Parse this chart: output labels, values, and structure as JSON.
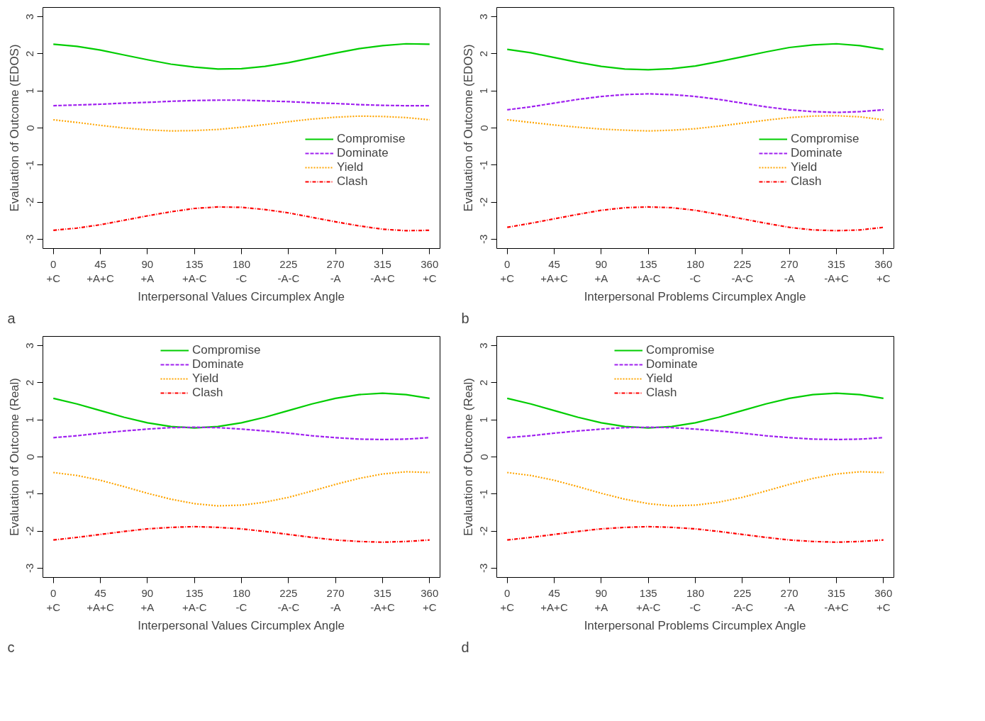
{
  "chart_data": [
    {
      "type": "line",
      "x": [
        0,
        22.5,
        45,
        67.5,
        90,
        112.5,
        135,
        157.5,
        180,
        202.5,
        225,
        247.5,
        270,
        292.5,
        315,
        337.5,
        360
      ],
      "xlabel": "Interpersonal Values Circumplex Angle",
      "ylabel": "Evaluation of Outcome (EDOS)",
      "xlim": [
        -10,
        370
      ],
      "ylim": [
        -3.25,
        3.25
      ],
      "xticks": [
        {
          "value": 0,
          "label": "0\n+C"
        },
        {
          "value": 45,
          "label": "45\n+A+C"
        },
        {
          "value": 90,
          "label": "90\n+A"
        },
        {
          "value": 135,
          "label": "135\n+A-C"
        },
        {
          "value": 180,
          "label": "180\n-C"
        },
        {
          "value": 225,
          "label": "225\n-A-C"
        },
        {
          "value": 270,
          "label": "270\n-A"
        },
        {
          "value": 315,
          "label": "315\n-A+C"
        },
        {
          "value": 360,
          "label": "360\n+C"
        }
      ],
      "yticks": [
        -3,
        -2,
        -1,
        0,
        1,
        2,
        3
      ],
      "grid": false,
      "legend": "right",
      "annotations": [
        "a"
      ],
      "series": [
        {
          "name": "Compromise",
          "color": "#00cd00",
          "line_style": "solid",
          "values": [
            2.26,
            2.2,
            2.1,
            1.97,
            1.84,
            1.72,
            1.64,
            1.59,
            1.6,
            1.66,
            1.76,
            1.89,
            2.02,
            2.14,
            2.22,
            2.27,
            2.26
          ]
        },
        {
          "name": "Dominate",
          "color": "#a020f0",
          "line_style": "dashed",
          "values": [
            0.6,
            0.62,
            0.64,
            0.67,
            0.69,
            0.72,
            0.74,
            0.75,
            0.75,
            0.73,
            0.71,
            0.68,
            0.66,
            0.63,
            0.61,
            0.6,
            0.6
          ]
        },
        {
          "name": "Yield",
          "color": "#ffa500",
          "line_style": "dotted",
          "values": [
            0.22,
            0.15,
            0.07,
            0.0,
            -0.05,
            -0.08,
            -0.07,
            -0.04,
            0.02,
            0.09,
            0.17,
            0.24,
            0.29,
            0.32,
            0.31,
            0.28,
            0.22
          ]
        },
        {
          "name": "Clash",
          "color": "#ff0000",
          "line_style": "dashdot",
          "values": [
            -2.76,
            -2.7,
            -2.61,
            -2.49,
            -2.37,
            -2.26,
            -2.17,
            -2.13,
            -2.14,
            -2.2,
            -2.29,
            -2.41,
            -2.53,
            -2.64,
            -2.73,
            -2.77,
            -2.76
          ]
        }
      ]
    },
    {
      "type": "line",
      "x": [
        0,
        22.5,
        45,
        67.5,
        90,
        112.5,
        135,
        157.5,
        180,
        202.5,
        225,
        247.5,
        270,
        292.5,
        315,
        337.5,
        360
      ],
      "xlabel": "Interpersonal Problems Circumplex Angle",
      "ylabel": "Evaluation of Outcome (EDOS)",
      "xlim": [
        -10,
        370
      ],
      "ylim": [
        -3.25,
        3.25
      ],
      "xticks": [
        {
          "value": 0,
          "label": "0\n+C"
        },
        {
          "value": 45,
          "label": "45\n+A+C"
        },
        {
          "value": 90,
          "label": "90\n+A"
        },
        {
          "value": 135,
          "label": "135\n+A-C"
        },
        {
          "value": 180,
          "label": "180\n-C"
        },
        {
          "value": 225,
          "label": "225\n-A-C"
        },
        {
          "value": 270,
          "label": "270\n-A"
        },
        {
          "value": 315,
          "label": "315\n-A+C"
        },
        {
          "value": 360,
          "label": "360\n+C"
        }
      ],
      "yticks": [
        -3,
        -2,
        -1,
        0,
        1,
        2,
        3
      ],
      "grid": false,
      "legend": "right",
      "annotations": [
        "b"
      ],
      "series": [
        {
          "name": "Compromise",
          "color": "#00cd00",
          "line_style": "solid",
          "values": [
            2.12,
            2.03,
            1.9,
            1.77,
            1.66,
            1.59,
            1.57,
            1.6,
            1.67,
            1.79,
            1.92,
            2.05,
            2.17,
            2.24,
            2.27,
            2.22,
            2.12
          ]
        },
        {
          "name": "Dominate",
          "color": "#a020f0",
          "line_style": "dashed",
          "values": [
            0.49,
            0.57,
            0.67,
            0.77,
            0.85,
            0.9,
            0.92,
            0.9,
            0.85,
            0.77,
            0.67,
            0.57,
            0.49,
            0.44,
            0.42,
            0.44,
            0.49
          ]
        },
        {
          "name": "Yield",
          "color": "#ffa500",
          "line_style": "dotted",
          "values": [
            0.22,
            0.15,
            0.08,
            0.02,
            -0.03,
            -0.06,
            -0.08,
            -0.06,
            -0.02,
            0.05,
            0.13,
            0.21,
            0.28,
            0.32,
            0.33,
            0.3,
            0.22
          ]
        },
        {
          "name": "Clash",
          "color": "#ff0000",
          "line_style": "dashdot",
          "values": [
            -2.68,
            -2.57,
            -2.45,
            -2.33,
            -2.22,
            -2.15,
            -2.13,
            -2.15,
            -2.22,
            -2.33,
            -2.45,
            -2.57,
            -2.68,
            -2.75,
            -2.77,
            -2.75,
            -2.68
          ]
        }
      ]
    },
    {
      "type": "line",
      "x": [
        0,
        22.5,
        45,
        67.5,
        90,
        112.5,
        135,
        157.5,
        180,
        202.5,
        225,
        247.5,
        270,
        292.5,
        315,
        337.5,
        360
      ],
      "xlabel": "Interpersonal Values Circumplex Angle",
      "ylabel": "Evaluation of Outcome (Real)",
      "xlim": [
        -10,
        370
      ],
      "ylim": [
        -3.25,
        3.25
      ],
      "xticks": [
        {
          "value": 0,
          "label": "0\n+C"
        },
        {
          "value": 45,
          "label": "45\n+A+C"
        },
        {
          "value": 90,
          "label": "90\n+A"
        },
        {
          "value": 135,
          "label": "135\n+A-C"
        },
        {
          "value": 180,
          "label": "180\n-C"
        },
        {
          "value": 225,
          "label": "225\n-A-C"
        },
        {
          "value": 270,
          "label": "270\n-A"
        },
        {
          "value": 315,
          "label": "315\n-A+C"
        },
        {
          "value": 360,
          "label": "360\n+C"
        }
      ],
      "yticks": [
        -3,
        -2,
        -1,
        0,
        1,
        2,
        3
      ],
      "grid": false,
      "legend": "top",
      "annotations": [
        "c"
      ],
      "series": [
        {
          "name": "Compromise",
          "color": "#00cd00",
          "line_style": "solid",
          "values": [
            1.58,
            1.43,
            1.25,
            1.07,
            0.92,
            0.82,
            0.78,
            0.82,
            0.92,
            1.07,
            1.25,
            1.43,
            1.58,
            1.68,
            1.72,
            1.68,
            1.58
          ]
        },
        {
          "name": "Dominate",
          "color": "#a020f0",
          "line_style": "dashed",
          "values": [
            0.52,
            0.57,
            0.64,
            0.7,
            0.75,
            0.79,
            0.8,
            0.79,
            0.75,
            0.7,
            0.64,
            0.57,
            0.52,
            0.48,
            0.47,
            0.48,
            0.52
          ]
        },
        {
          "name": "Yield",
          "color": "#ffa500",
          "line_style": "dotted",
          "values": [
            -0.42,
            -0.5,
            -0.63,
            -0.8,
            -0.98,
            -1.14,
            -1.26,
            -1.32,
            -1.3,
            -1.22,
            -1.09,
            -0.92,
            -0.74,
            -0.58,
            -0.46,
            -0.4,
            -0.42
          ]
        },
        {
          "name": "Clash",
          "color": "#ff0000",
          "line_style": "dashdot",
          "values": [
            -2.24,
            -2.17,
            -2.09,
            -2.01,
            -1.94,
            -1.9,
            -1.88,
            -1.9,
            -1.94,
            -2.01,
            -2.09,
            -2.17,
            -2.24,
            -2.28,
            -2.3,
            -2.28,
            -2.24
          ]
        }
      ]
    },
    {
      "type": "line",
      "x": [
        0,
        22.5,
        45,
        67.5,
        90,
        112.5,
        135,
        157.5,
        180,
        202.5,
        225,
        247.5,
        270,
        292.5,
        315,
        337.5,
        360
      ],
      "xlabel": "Interpersonal Problems Circumplex Angle",
      "ylabel": "Evaluation of Outcome (Real)",
      "xlim": [
        -10,
        370
      ],
      "ylim": [
        -3.25,
        3.25
      ],
      "xticks": [
        {
          "value": 0,
          "label": "0\n+C"
        },
        {
          "value": 45,
          "label": "45\n+A+C"
        },
        {
          "value": 90,
          "label": "90\n+A"
        },
        {
          "value": 135,
          "label": "135\n+A-C"
        },
        {
          "value": 180,
          "label": "180\n-C"
        },
        {
          "value": 225,
          "label": "225\n-A-C"
        },
        {
          "value": 270,
          "label": "270\n-A"
        },
        {
          "value": 315,
          "label": "315\n-A+C"
        },
        {
          "value": 360,
          "label": "360\n+C"
        }
      ],
      "yticks": [
        -3,
        -2,
        -1,
        0,
        1,
        2,
        3
      ],
      "grid": false,
      "legend": "top",
      "annotations": [
        "d"
      ],
      "series": [
        {
          "name": "Compromise",
          "color": "#00cd00",
          "line_style": "solid",
          "values": [
            1.58,
            1.43,
            1.25,
            1.07,
            0.92,
            0.82,
            0.78,
            0.82,
            0.92,
            1.07,
            1.25,
            1.43,
            1.58,
            1.68,
            1.72,
            1.68,
            1.58
          ]
        },
        {
          "name": "Dominate",
          "color": "#a020f0",
          "line_style": "dashed",
          "values": [
            0.52,
            0.57,
            0.64,
            0.7,
            0.75,
            0.79,
            0.8,
            0.79,
            0.75,
            0.7,
            0.64,
            0.57,
            0.52,
            0.48,
            0.47,
            0.48,
            0.52
          ]
        },
        {
          "name": "Yield",
          "color": "#ffa500",
          "line_style": "dotted",
          "values": [
            -0.42,
            -0.5,
            -0.63,
            -0.8,
            -0.98,
            -1.14,
            -1.26,
            -1.32,
            -1.3,
            -1.22,
            -1.09,
            -0.92,
            -0.74,
            -0.58,
            -0.46,
            -0.4,
            -0.42
          ]
        },
        {
          "name": "Clash",
          "color": "#ff0000",
          "line_style": "dashdot",
          "values": [
            -2.24,
            -2.17,
            -2.09,
            -2.01,
            -1.94,
            -1.9,
            -1.88,
            -1.9,
            -1.94,
            -2.01,
            -2.09,
            -2.17,
            -2.24,
            -2.28,
            -2.3,
            -2.28,
            -2.24
          ]
        }
      ]
    }
  ]
}
